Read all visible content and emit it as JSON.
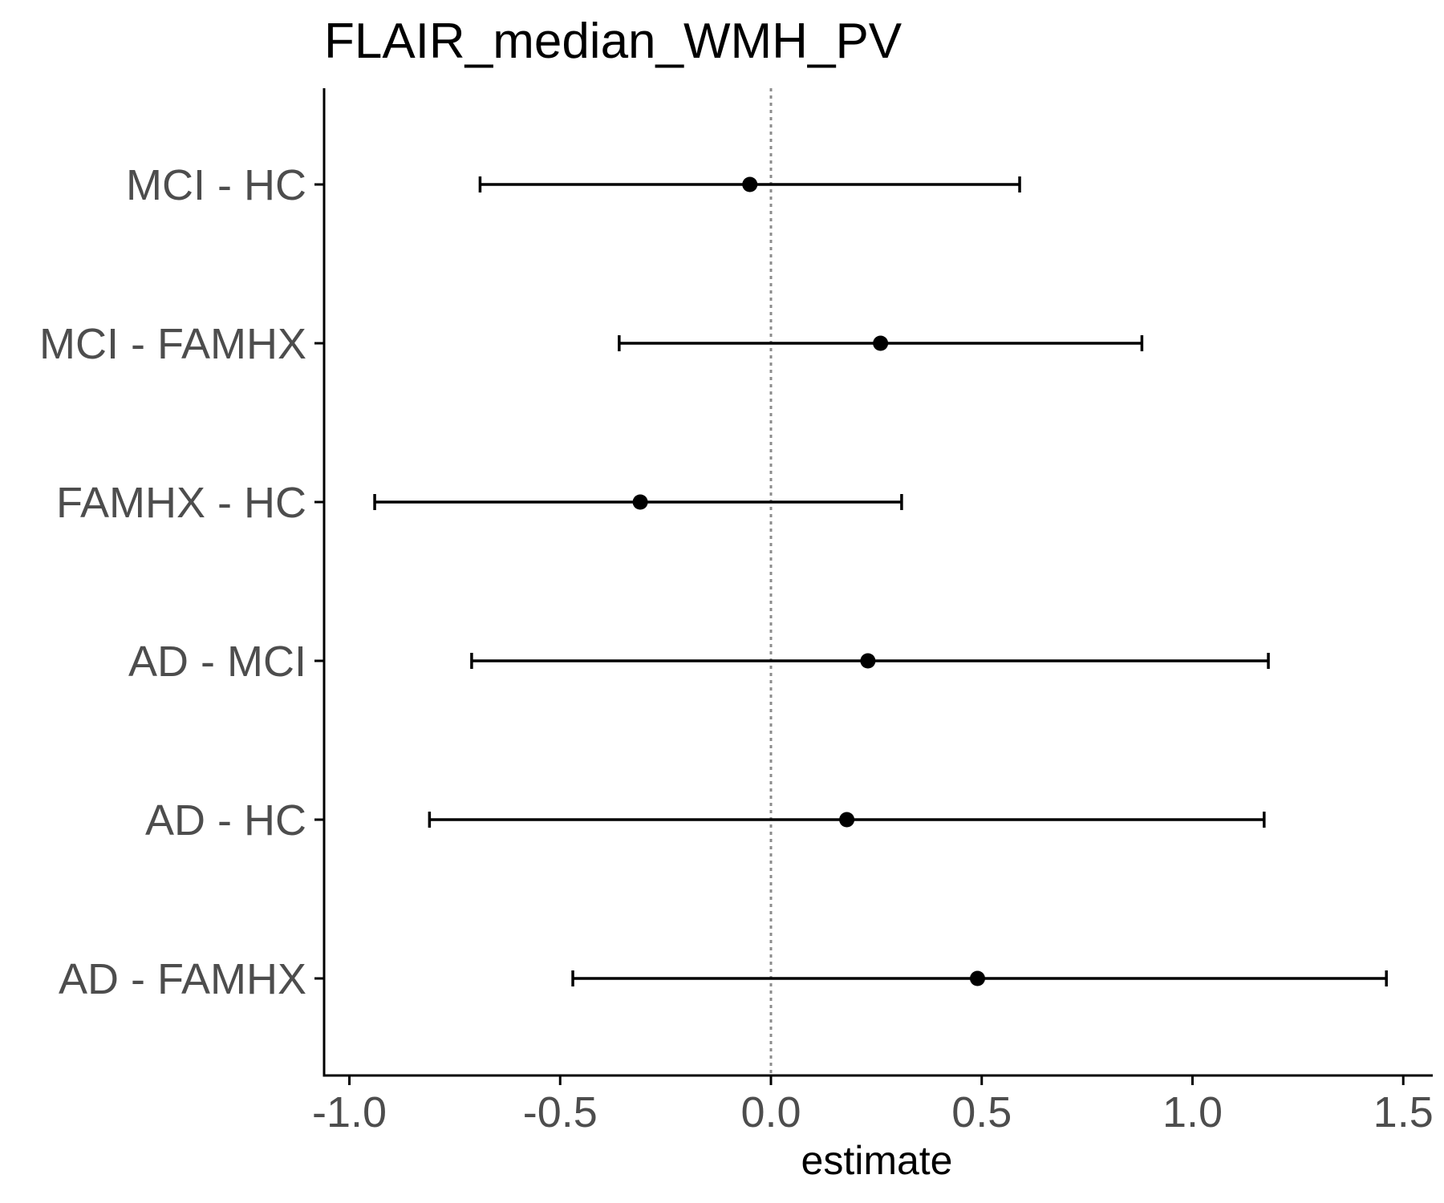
{
  "chart_data": {
    "type": "scatter",
    "subtype": "forest-plot",
    "title": "FLAIR_median_WMH_PV",
    "xlabel": "estimate",
    "ylabel": "",
    "xlim": [
      -1.06,
      1.57
    ],
    "x_ticks": [
      -1.0,
      -0.5,
      0.0,
      0.5,
      1.0,
      1.5
    ],
    "x_tick_labels": [
      "-1.0",
      "-0.5",
      "0.0",
      "0.5",
      "1.0",
      "1.5"
    ],
    "reference_line": {
      "x": 0.0,
      "style": "dotted",
      "color": "#8c8c8c"
    },
    "grid": false,
    "legend": "none",
    "categories": [
      "MCI - HC",
      "MCI - FAMHX",
      "FAMHX - HC",
      "AD - MCI",
      "AD - HC",
      "AD - FAMHX"
    ],
    "series": [
      {
        "estimate": [
          -0.05,
          0.26,
          -0.31,
          0.23,
          0.18,
          0.49
        ],
        "conf_low": [
          -0.69,
          -0.36,
          -0.94,
          -0.71,
          -0.81,
          -0.47
        ],
        "conf_high": [
          0.59,
          0.88,
          0.31,
          1.18,
          1.17,
          1.46
        ]
      }
    ],
    "colors": {
      "point": "#000000",
      "errorbar": "#000000",
      "axis": "#000000",
      "tick_label": "#4d4d4d"
    }
  }
}
